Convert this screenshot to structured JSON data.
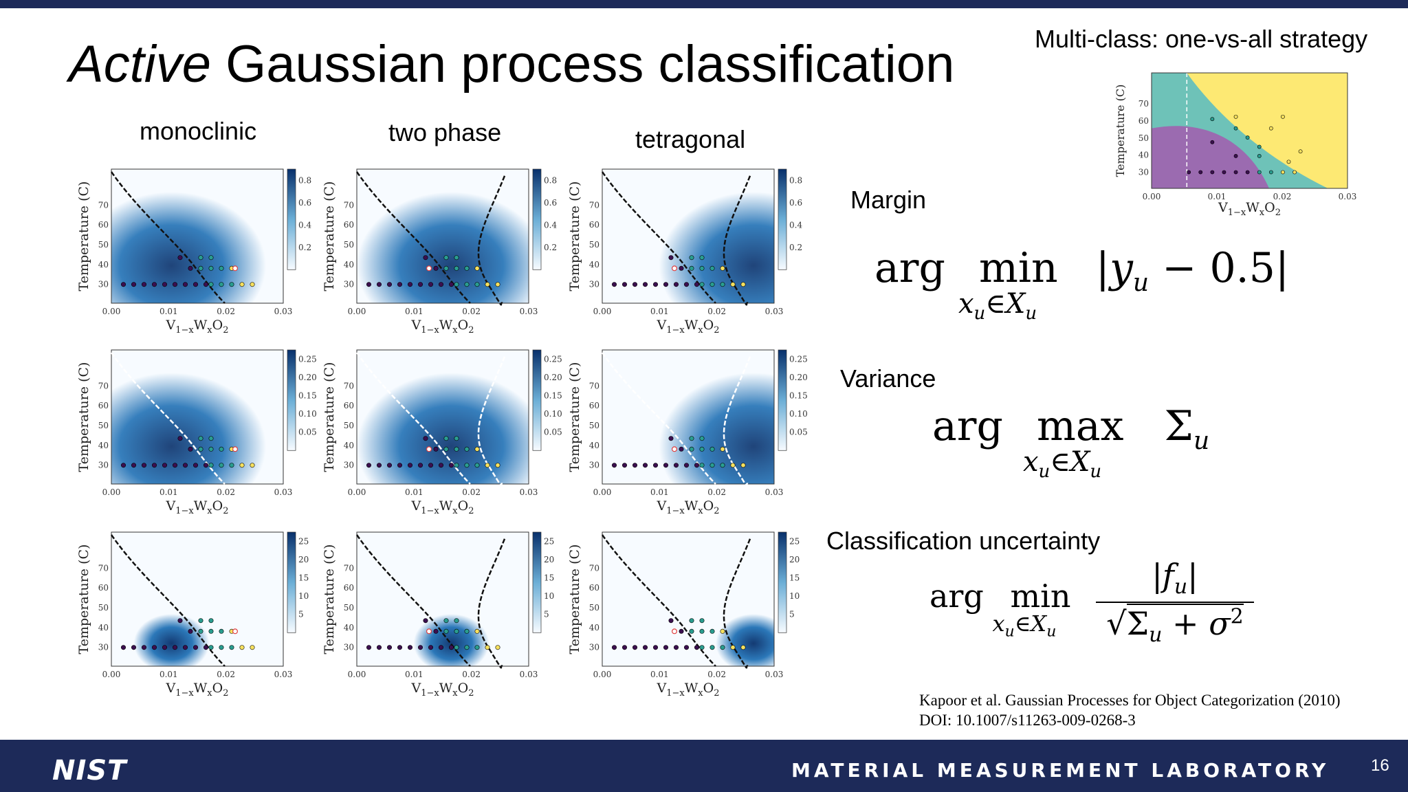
{
  "slide": {
    "title_italic": "Active",
    "title_rest": " Gaussian process classification",
    "page_number": "16"
  },
  "columns": [
    "monoclinic",
    "two phase",
    "tetragonal"
  ],
  "plot_axes": {
    "ylabel": "Temperature (C)",
    "xlabel": "V1−xWxO2",
    "x_ticks": [
      "0.00",
      "0.01",
      "0.02",
      "0.03"
    ],
    "y_ticks": [
      "30",
      "40",
      "50",
      "60",
      "70"
    ]
  },
  "colorbars": [
    [
      "0.2",
      "0.4",
      "0.6",
      "0.8"
    ],
    [
      "0.05",
      "0.10",
      "0.15",
      "0.20",
      "0.25"
    ],
    [
      "5",
      "10",
      "15",
      "20",
      "25"
    ]
  ],
  "multiclass": {
    "label": "Multi-class: one-vs-all strategy",
    "x_ticks": [
      "0.00",
      "0.01",
      "0.02",
      "0.03"
    ],
    "y_ticks": [
      "30",
      "40",
      "50",
      "60",
      "70"
    ],
    "ylabel": "Temperature (C)",
    "xlabel": "V1−xWxO2"
  },
  "criteria": {
    "margin_label": "Margin",
    "variance_label": "Variance",
    "uncertainty_label": "Classification uncertainty"
  },
  "reference": {
    "line1": "Kapoor et al. Gaussian Processes for Object Categorization (2010)",
    "line2": "DOI: 10.1007/s11263-009-0268-3"
  },
  "footer": {
    "logo_text": "NIST",
    "lab": "MATERIAL MEASUREMENT LABORATORY"
  }
}
